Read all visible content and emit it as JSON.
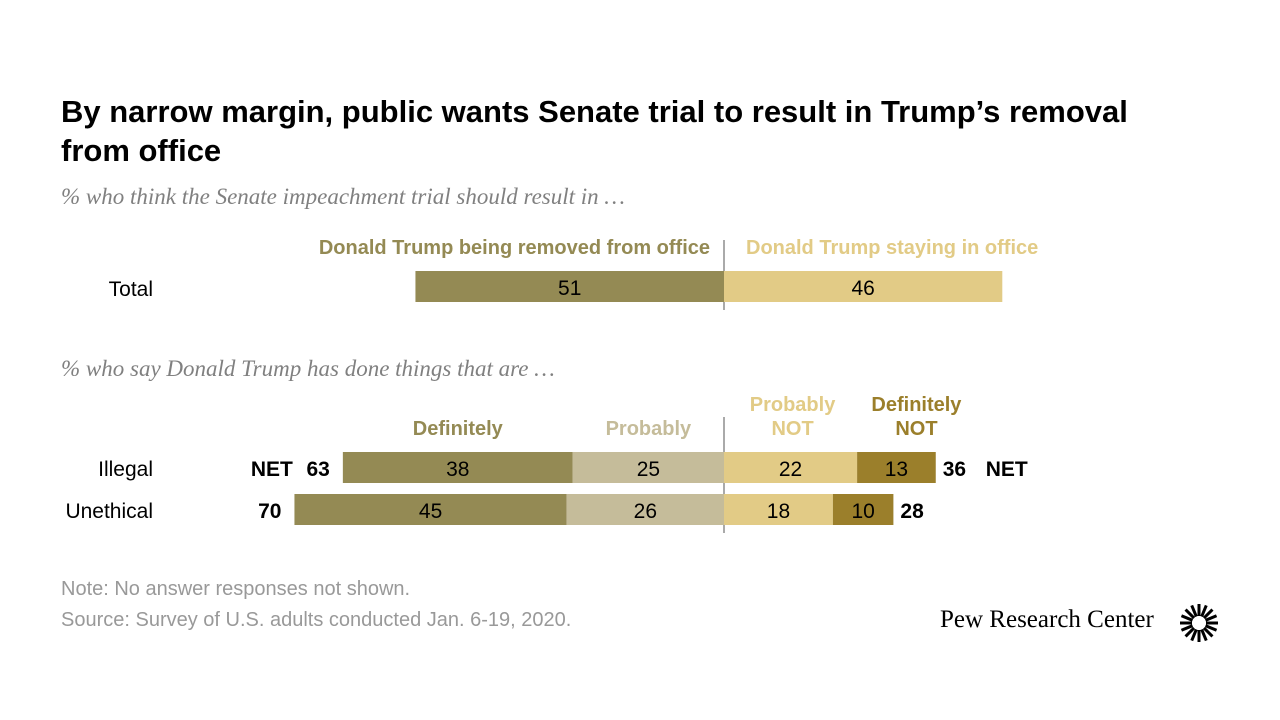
{
  "title": "By narrow margin, public wants Senate trial to result in Trump’s removal from office",
  "brand": "Pew Research Center",
  "note": "Note: No answer responses not shown.",
  "source": "Source: Survey of U.S. adults conducted Jan. 6-19, 2020.",
  "colors": {
    "removed": "#948a54",
    "staying": "#e2cb86",
    "definitely": "#948a54",
    "probably": "#c5bc9a",
    "probably_not": "#e2cb86",
    "definitely_not": "#9b7f2b"
  },
  "chart_data": [
    {
      "type": "bar",
      "subtitle": "% who think the Senate impeachment trial should result in …",
      "legend": [
        "Donald Trump being removed from office",
        "Donald Trump staying in office"
      ],
      "categories": [
        "Total"
      ],
      "series": [
        {
          "name": "Donald Trump being removed from office",
          "values": [
            51
          ]
        },
        {
          "name": "Donald Trump staying in office",
          "values": [
            46
          ]
        }
      ]
    },
    {
      "type": "bar",
      "subtitle": "% who say Donald Trump has done things that are …",
      "categories": [
        "Illegal",
        "Unethical"
      ],
      "series": [
        {
          "name": "Definitely",
          "values": [
            38,
            45
          ]
        },
        {
          "name": "Probably",
          "values": [
            25,
            26
          ]
        },
        {
          "name": "Probably NOT",
          "values": [
            22,
            18
          ]
        },
        {
          "name": "Definitely NOT",
          "values": [
            13,
            10
          ]
        }
      ],
      "net_left": [
        63,
        70
      ],
      "net_right": [
        36,
        28
      ],
      "net_label": "NET"
    }
  ]
}
